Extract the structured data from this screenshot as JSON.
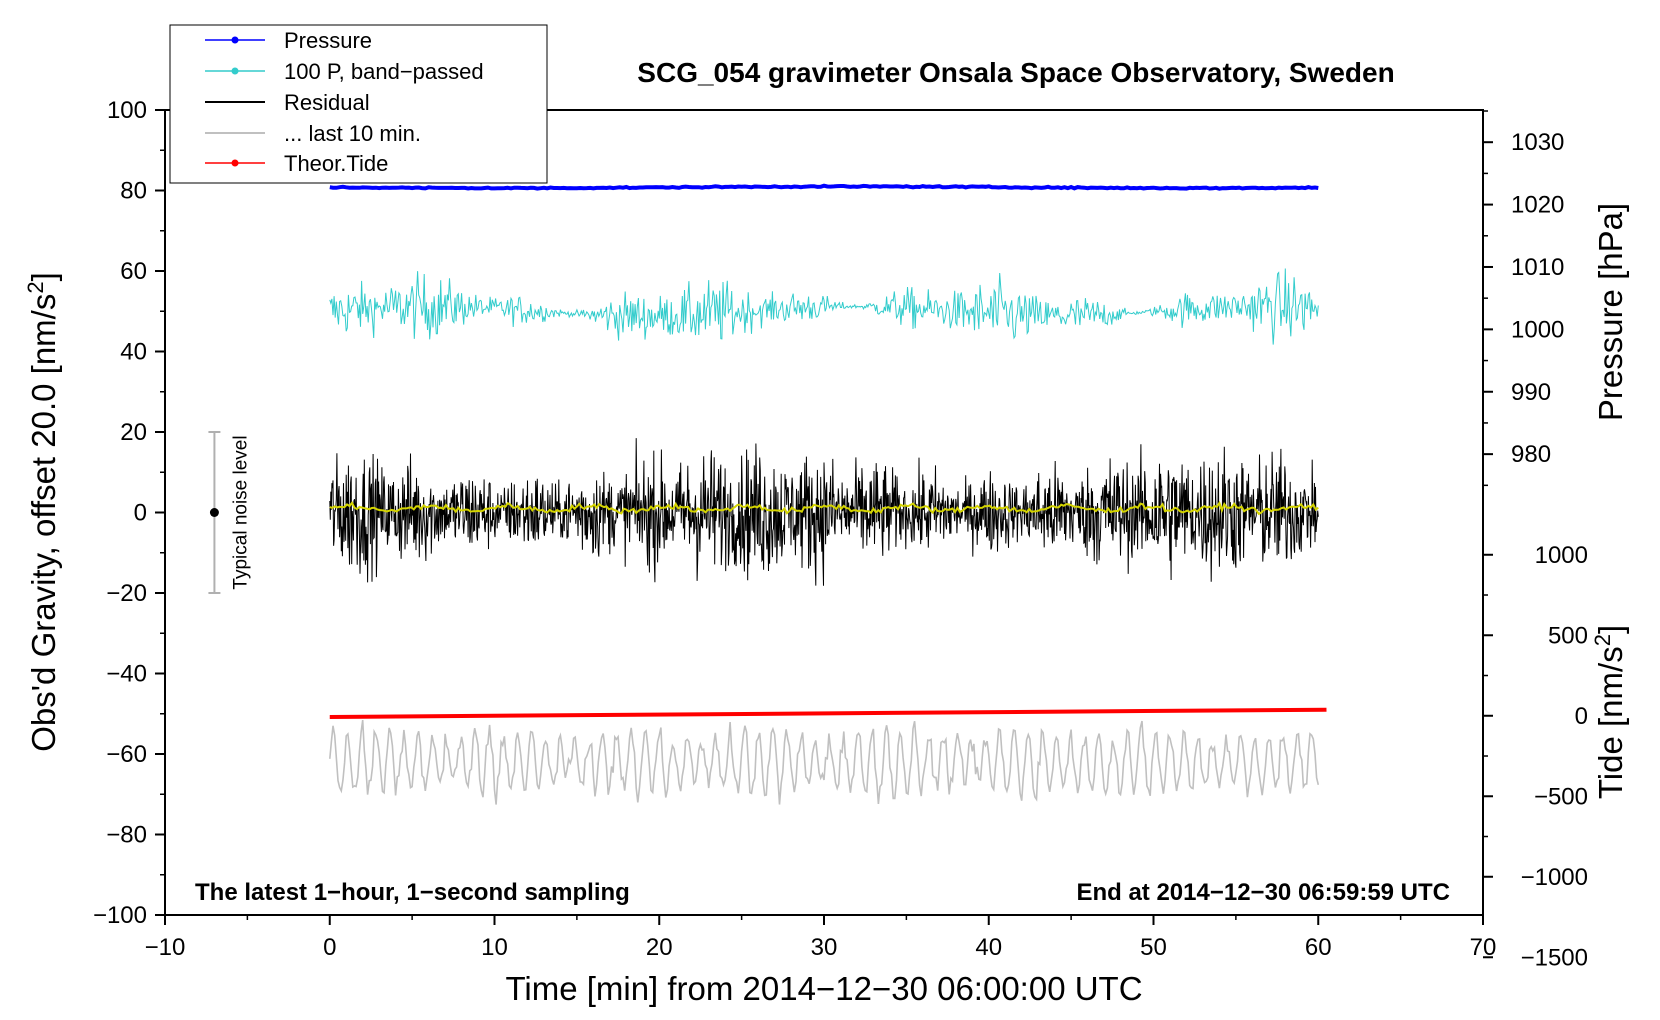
{
  "chart_data": {
    "type": "line",
    "title": "SCG_054 gravimeter Onsala Space Observatory, Sweden",
    "xlabel": "Time [min] from 2014−12−30 06:00:00 UTC",
    "ylabel_left": "Obs'd Gravity, offset 20.0 [nm/s",
    "ylabel_left_sup": "2",
    "ylabel_left_close": "]",
    "ylabel_right_pressure": "Pressure [hPa]",
    "ylabel_right_tide": "Tide [nm/s",
    "ylabel_right_tide_sup": "2",
    "ylabel_right_tide_close": "]",
    "xlim": [
      -10,
      70
    ],
    "ylim": [
      -100,
      100
    ],
    "x_ticks": [
      {
        "value": -10,
        "label": "−10"
      },
      {
        "value": 0,
        "label": "0"
      },
      {
        "value": 10,
        "label": "10"
      },
      {
        "value": 20,
        "label": "20"
      },
      {
        "value": 30,
        "label": "30"
      },
      {
        "value": 40,
        "label": "40"
      },
      {
        "value": 50,
        "label": "50"
      },
      {
        "value": 60,
        "label": "60"
      },
      {
        "value": 70,
        "label": "70"
      }
    ],
    "y_ticks": [
      {
        "value": 100,
        "label": "100"
      },
      {
        "value": 80,
        "label": "80"
      },
      {
        "value": 60,
        "label": "60"
      },
      {
        "value": 40,
        "label": "40"
      },
      {
        "value": 20,
        "label": "20"
      },
      {
        "value": 0,
        "label": "0"
      },
      {
        "value": -20,
        "label": "−20"
      },
      {
        "value": -40,
        "label": "−40"
      },
      {
        "value": -60,
        "label": "−60"
      },
      {
        "value": -80,
        "label": "−80"
      },
      {
        "value": -100,
        "label": "−100"
      }
    ],
    "pressure_axis": {
      "gravity_at_1000hPa": 45.5,
      "gravity_per_hPa": 1.55,
      "ticks": [
        {
          "value": 1030,
          "label": "1030"
        },
        {
          "value": 1020,
          "label": "1020"
        },
        {
          "value": 1010,
          "label": "1010"
        },
        {
          "value": 1000,
          "label": "1000"
        },
        {
          "value": 990,
          "label": "990"
        },
        {
          "value": 980,
          "label": "980"
        }
      ]
    },
    "tide_axis": {
      "gravity_at_0": -50.5,
      "gravity_per_unit": 0.04,
      "ticks": [
        {
          "value": 1000,
          "label": "1000"
        },
        {
          "value": 500,
          "label": "500"
        },
        {
          "value": 0,
          "label": "0"
        },
        {
          "value": -500,
          "label": "−500"
        },
        {
          "value": -1000,
          "label": "−1000"
        },
        {
          "value": -1500,
          "label": "−1500"
        }
      ]
    },
    "series": [
      {
        "name": "Pressure",
        "color": "#0000ff",
        "start_x": 0,
        "end_x": 60,
        "y_level_gravity": 80.8,
        "noise_amplitude": 0.3,
        "approx_value_hPa": 1022
      },
      {
        "name": "100 P, band−passed",
        "color": "#33cccc",
        "start_x": 0,
        "end_x": 60,
        "y_level_gravity": 50,
        "noise_amplitude": 4
      },
      {
        "name": "Residual",
        "color": "#000000",
        "start_x": 0,
        "end_x": 60,
        "y_level_gravity": 0,
        "noise_amplitude": 14
      },
      {
        "name": "... last 10 min.",
        "color": "#c0c0c0",
        "start_x": 0,
        "end_x": 60,
        "y_level_gravity": -62,
        "noise_amplitude": 8
      },
      {
        "name": "Theor.Tide",
        "color": "#ff0000",
        "start_x": 0,
        "end_x": 60.5,
        "y_start_gravity": -50.8,
        "y_end_gravity": -49
      }
    ],
    "smoothed_residual": {
      "name": "smoothed residual",
      "color": "#d4d400",
      "y_level_gravity": 1
    },
    "noise_level": {
      "label": "Typical noise level",
      "x": -7,
      "y": 0,
      "low": -20,
      "high": 20
    },
    "annotations": {
      "left": "The latest 1−hour, 1−second sampling",
      "right": "End at 2014−12−30 06:59:59 UTC"
    }
  }
}
